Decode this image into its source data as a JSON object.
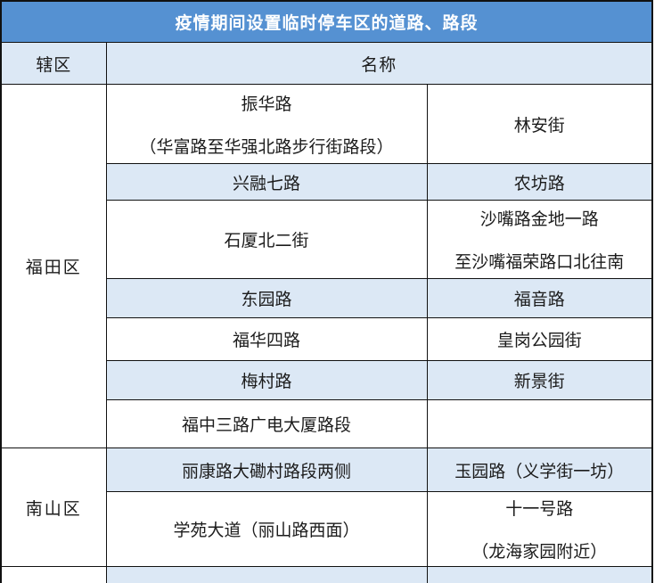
{
  "table": {
    "title": "疫情期间设置临时停车区的道路、路段",
    "columns": {
      "district": "辖区",
      "name": "名称"
    },
    "sections": [
      {
        "district": "福田区",
        "rows": [
          {
            "left": [
              "振华路",
              "（华富路至华强北路步行街路段）"
            ],
            "right": [
              "林安街"
            ],
            "shaded": false
          },
          {
            "left": [
              "兴融七路"
            ],
            "right": [
              "农坊路"
            ],
            "shaded": true
          },
          {
            "left": [
              "石厦北二街"
            ],
            "right": [
              "沙嘴路金地一路",
              "至沙嘴福荣路口北往南"
            ],
            "shaded": false
          },
          {
            "left": [
              "东园路"
            ],
            "right": [
              "福音路"
            ],
            "shaded": true
          },
          {
            "left": [
              "福华四路"
            ],
            "right": [
              "皇岗公园街"
            ],
            "shaded": false
          },
          {
            "left": [
              "梅村路"
            ],
            "right": [
              "新景街"
            ],
            "shaded": true
          },
          {
            "left": [
              "福中三路广电大厦路段"
            ],
            "right": [
              ""
            ],
            "shaded": false
          }
        ]
      },
      {
        "district": "南山区",
        "rows": [
          {
            "left": [
              "丽康路大磡村路段两侧"
            ],
            "right": [
              "玉园路（义学街一坊）"
            ],
            "shaded": true
          },
          {
            "left": [
              "学苑大道（丽山路西面）"
            ],
            "right": [
              "十一号路",
              "（龙海家园附近）"
            ],
            "shaded": false
          }
        ]
      }
    ],
    "partial_bottom_row": {
      "left": "",
      "middle": "",
      "right": "",
      "shaded": true
    },
    "colors": {
      "title_bg": "#5591d2",
      "title_text": "#ffffff",
      "subheader_bg": "#dce8f5",
      "shaded_row_bg": "#dce8f5",
      "body_text": "#1c1c1c",
      "border": "#111111",
      "district_bg": "#ffffff"
    }
  }
}
